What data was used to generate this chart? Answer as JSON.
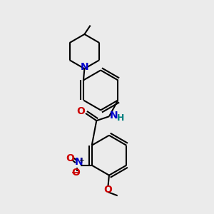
{
  "background_color": "#ebebeb",
  "bond_color": "#000000",
  "n_color": "#0000cc",
  "o_color": "#cc0000",
  "nh_color": "#008080",
  "line_width": 1.5,
  "figsize": [
    3.0,
    3.0
  ],
  "dpi": 100,
  "xlim": [
    0,
    10
  ],
  "ylim": [
    0,
    10
  ]
}
